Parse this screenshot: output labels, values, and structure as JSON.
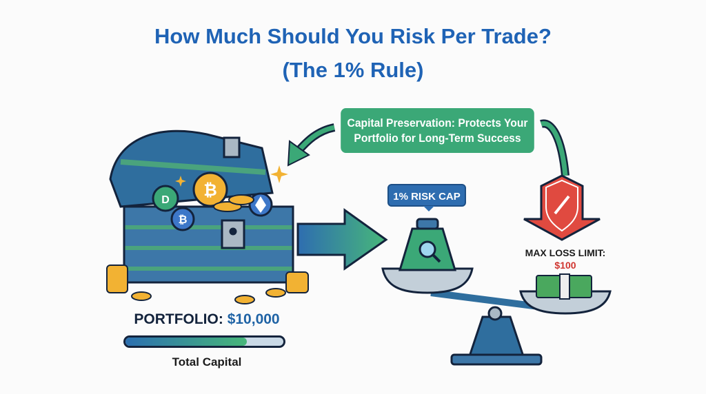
{
  "title": {
    "line1": "How Much Should You Risk Per Trade?",
    "line2": "(The 1% Rule)"
  },
  "callout": {
    "line1": "Capital Preservation: Protects Your",
    "line2": "Portfolio for Long-Term Success"
  },
  "risk_cap": {
    "label": "1% RISK CAP"
  },
  "portfolio": {
    "label": "PORTFOLIO:",
    "value": "$10,000",
    "bar_fill_percent": 77,
    "caption": "Total Capital"
  },
  "max_loss": {
    "label": "MAX LOSS LIMIT:",
    "value": "$100"
  },
  "icons": [
    "treasure-chest-icon",
    "bitcoin-coin-icon",
    "ethereum-coin-icon",
    "dash-coin-icon",
    "coin-stack-icon",
    "arrow-right-icon",
    "curved-arrow-icon",
    "weight-magnifier-icon",
    "balance-scale-icon",
    "broken-chain-shield-icon",
    "cash-stack-icon",
    "sparkle-icon"
  ],
  "colors": {
    "title": "#1f63b5",
    "callout": "#3ba877",
    "risk_cap": "#2e6db0",
    "loss": "#d0352f",
    "text_dark": "#13233c"
  }
}
